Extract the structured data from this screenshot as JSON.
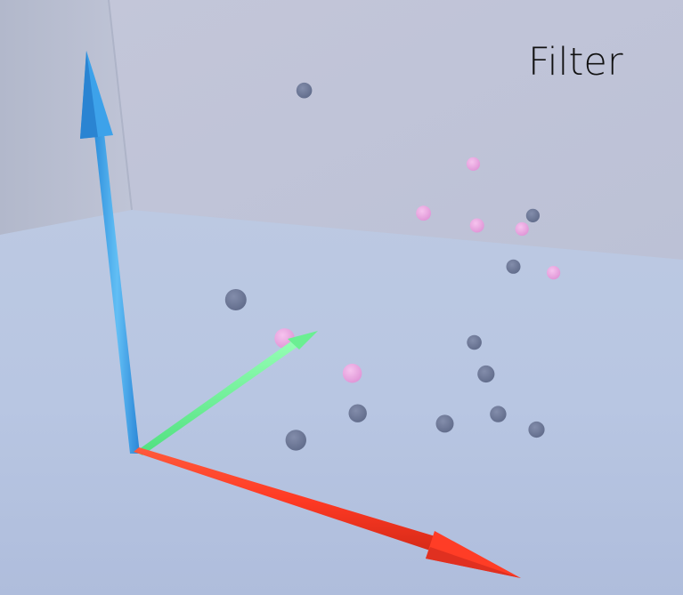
{
  "filter_button": {
    "label": "Filter"
  },
  "chart_data": {
    "type": "scatter",
    "title": "",
    "xlabel": "",
    "ylabel": "",
    "zlabel": "",
    "axes": {
      "x": {
        "color": "#ff3b2a"
      },
      "y": {
        "color": "#71f59b"
      },
      "z": {
        "color": "#48a9ec"
      }
    },
    "series": [
      {
        "color": "#6d7895",
        "points": [
          [
            1.2,
            9.0,
            8.4
          ],
          [
            6.5,
            8.5,
            5.0
          ],
          [
            2.1,
            2.3,
            4.7
          ],
          [
            5.2,
            8.4,
            2.2
          ],
          [
            6.8,
            9.3,
            6.4
          ],
          [
            6.0,
            4.8,
            1.3
          ],
          [
            6.8,
            6.1,
            1.4
          ],
          [
            7.1,
            5.2,
            3.1
          ],
          [
            8.0,
            5.7,
            1.5
          ],
          [
            3.1,
            2.5,
            0.6
          ],
          [
            3.4,
            5.3,
            0.5
          ]
        ]
      },
      {
        "color": "#e8a2df",
        "points": [
          [
            5.0,
            10.0,
            7.1
          ],
          [
            4.2,
            8.6,
            5.8
          ],
          [
            5.4,
            9.0,
            5.7
          ],
          [
            6.4,
            9.4,
            5.8
          ],
          [
            2.7,
            3.4,
            3.3
          ],
          [
            4.2,
            3.8,
            2.6
          ],
          [
            7.2,
            9.2,
            4.8
          ]
        ]
      }
    ]
  }
}
